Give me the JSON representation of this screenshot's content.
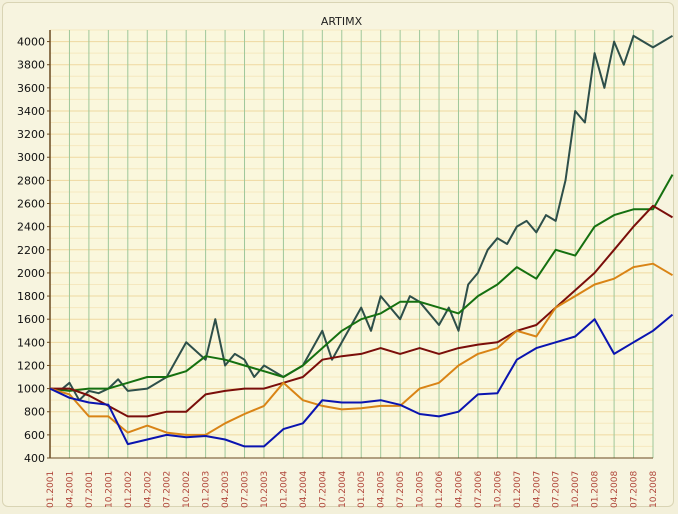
{
  "chart_data": {
    "type": "line",
    "title": "ARTIMX",
    "xlabel": "",
    "ylabel": "",
    "ylim": [
      400,
      4100
    ],
    "yticks": [
      400,
      600,
      800,
      1000,
      1200,
      1400,
      1600,
      1800,
      2000,
      2200,
      2400,
      2600,
      2800,
      3000,
      3200,
      3400,
      3600,
      3800,
      4000
    ],
    "xticks": [
      "01.2001",
      "04.2001",
      "07.2001",
      "10.2001",
      "01.2002",
      "04.2002",
      "07.2002",
      "10.2002",
      "01.2003",
      "04.2003",
      "07.2003",
      "10.2003",
      "01.2004",
      "04.2004",
      "07.2004",
      "10.2004",
      "01.2005",
      "04.2005",
      "07.2005",
      "10.2005",
      "01.2006",
      "04.2006",
      "07.2006",
      "10.2006",
      "01.2007",
      "04.2007",
      "07.2007",
      "10.2007",
      "01.2008",
      "04.2008",
      "07.2008",
      "10.2008"
    ],
    "grid": true,
    "legend": "none",
    "series": [
      {
        "color": "#2e4f4a",
        "x": [
          0,
          0.5,
          1,
          1.5,
          2,
          2.5,
          3,
          3.5,
          4,
          5,
          6,
          7,
          8,
          8.5,
          9,
          9.5,
          10,
          10.5,
          11,
          11.5,
          12,
          13,
          14,
          14.5,
          15,
          16,
          16.5,
          17,
          18,
          18.5,
          19,
          20,
          20.5,
          21,
          21.5,
          22,
          22.5,
          23,
          23.5,
          24,
          24.5,
          25,
          25.5,
          26,
          26.5,
          27,
          27.5,
          28,
          28.5,
          29,
          29.5,
          30,
          30.5,
          31,
          31.5,
          32
        ],
        "values": [
          1000,
          980,
          1050,
          900,
          980,
          960,
          1000,
          1080,
          980,
          1000,
          1100,
          1400,
          1250,
          1600,
          1200,
          1300,
          1250,
          1100,
          1200,
          1150,
          1100,
          1200,
          1500,
          1250,
          1400,
          1700,
          1500,
          1800,
          1600,
          1800,
          1750,
          1550,
          1700,
          1500,
          1900,
          2000,
          2200,
          2300,
          2250,
          2400,
          2450,
          2350,
          2500,
          2450,
          2800,
          3400,
          3300,
          3900,
          3600,
          4000,
          3800,
          4050,
          4000,
          3950,
          4000,
          4050
        ]
      },
      {
        "color": "#157010",
        "x": [
          0,
          1,
          2,
          3,
          4,
          5,
          6,
          7,
          8,
          9,
          10,
          11,
          12,
          13,
          14,
          15,
          16,
          17,
          18,
          19,
          20,
          21,
          22,
          23,
          24,
          25,
          26,
          27,
          28,
          29,
          30,
          31,
          32
        ],
        "values": [
          1000,
          980,
          1000,
          1000,
          1050,
          1100,
          1100,
          1150,
          1280,
          1250,
          1200,
          1150,
          1100,
          1200,
          1350,
          1500,
          1600,
          1650,
          1750,
          1750,
          1700,
          1650,
          1800,
          1900,
          2050,
          1950,
          2200,
          2150,
          2400,
          2500,
          2550,
          2550,
          2850
        ]
      },
      {
        "color": "#7a0e0a",
        "x": [
          0,
          1,
          2,
          3,
          4,
          5,
          6,
          7,
          8,
          9,
          10,
          11,
          12,
          13,
          14,
          15,
          16,
          17,
          18,
          19,
          20,
          21,
          22,
          23,
          24,
          25,
          26,
          27,
          28,
          29,
          30,
          31,
          32
        ],
        "values": [
          1000,
          1000,
          940,
          850,
          760,
          760,
          800,
          800,
          950,
          980,
          1000,
          1000,
          1050,
          1100,
          1250,
          1280,
          1300,
          1350,
          1300,
          1350,
          1300,
          1350,
          1380,
          1400,
          1500,
          1550,
          1700,
          1850,
          2000,
          2200,
          2400,
          2580,
          2480
        ]
      },
      {
        "color": "#d98416",
        "x": [
          0,
          1,
          2,
          3,
          4,
          5,
          6,
          7,
          8,
          9,
          10,
          11,
          12,
          13,
          14,
          15,
          16,
          17,
          18,
          19,
          20,
          21,
          22,
          23,
          24,
          25,
          26,
          27,
          28,
          29,
          30,
          31,
          32
        ],
        "values": [
          1000,
          950,
          760,
          760,
          620,
          680,
          620,
          600,
          600,
          700,
          780,
          850,
          1050,
          900,
          850,
          820,
          830,
          850,
          850,
          1000,
          1050,
          1200,
          1300,
          1350,
          1500,
          1450,
          1700,
          1800,
          1900,
          1950,
          2050,
          2080,
          1980
        ]
      },
      {
        "color": "#0a14b0",
        "x": [
          0,
          1,
          2,
          3,
          4,
          5,
          6,
          7,
          8,
          9,
          10,
          11,
          12,
          13,
          14,
          15,
          16,
          17,
          18,
          19,
          20,
          21,
          22,
          23,
          24,
          25,
          26,
          27,
          28,
          29,
          30,
          31,
          32
        ],
        "values": [
          1000,
          920,
          880,
          860,
          520,
          560,
          600,
          580,
          590,
          560,
          500,
          500,
          650,
          700,
          900,
          880,
          880,
          900,
          860,
          780,
          760,
          800,
          950,
          960,
          1250,
          1350,
          1400,
          1450,
          1600,
          1300,
          1400,
          1500,
          1640
        ]
      }
    ]
  }
}
